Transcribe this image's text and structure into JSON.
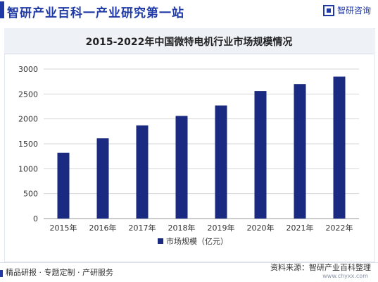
{
  "header": {
    "site_title": "智研产业百科一产业研究第一站",
    "brand_name": "智研咨询"
  },
  "colors": {
    "bar": "#1a2a80",
    "accent": "#1f3aa6",
    "grid": "#d6d6d6"
  },
  "chart_data": {
    "type": "bar",
    "title": "2015-2022年中国微特电机行业市场规模情况",
    "categories": [
      "2015年",
      "2016年",
      "2017年",
      "2018年",
      "2019年",
      "2020年",
      "2021年",
      "2022年"
    ],
    "series": [
      {
        "name": "市场规模（亿元）",
        "values": [
          1320,
          1610,
          1870,
          2060,
          2270,
          2560,
          2700,
          2850
        ]
      }
    ],
    "yticks": [
      "0",
      "500",
      "1000",
      "1500",
      "2000",
      "2500",
      "3000"
    ],
    "ylim": [
      0,
      3000
    ],
    "grid": true,
    "legend": "bottom"
  },
  "footer": {
    "left_text": "精品研报 · 专题定制 · 产研服务",
    "source_text": "资料来源：智研产业百科整理",
    "url": "www.chyxx.com"
  }
}
